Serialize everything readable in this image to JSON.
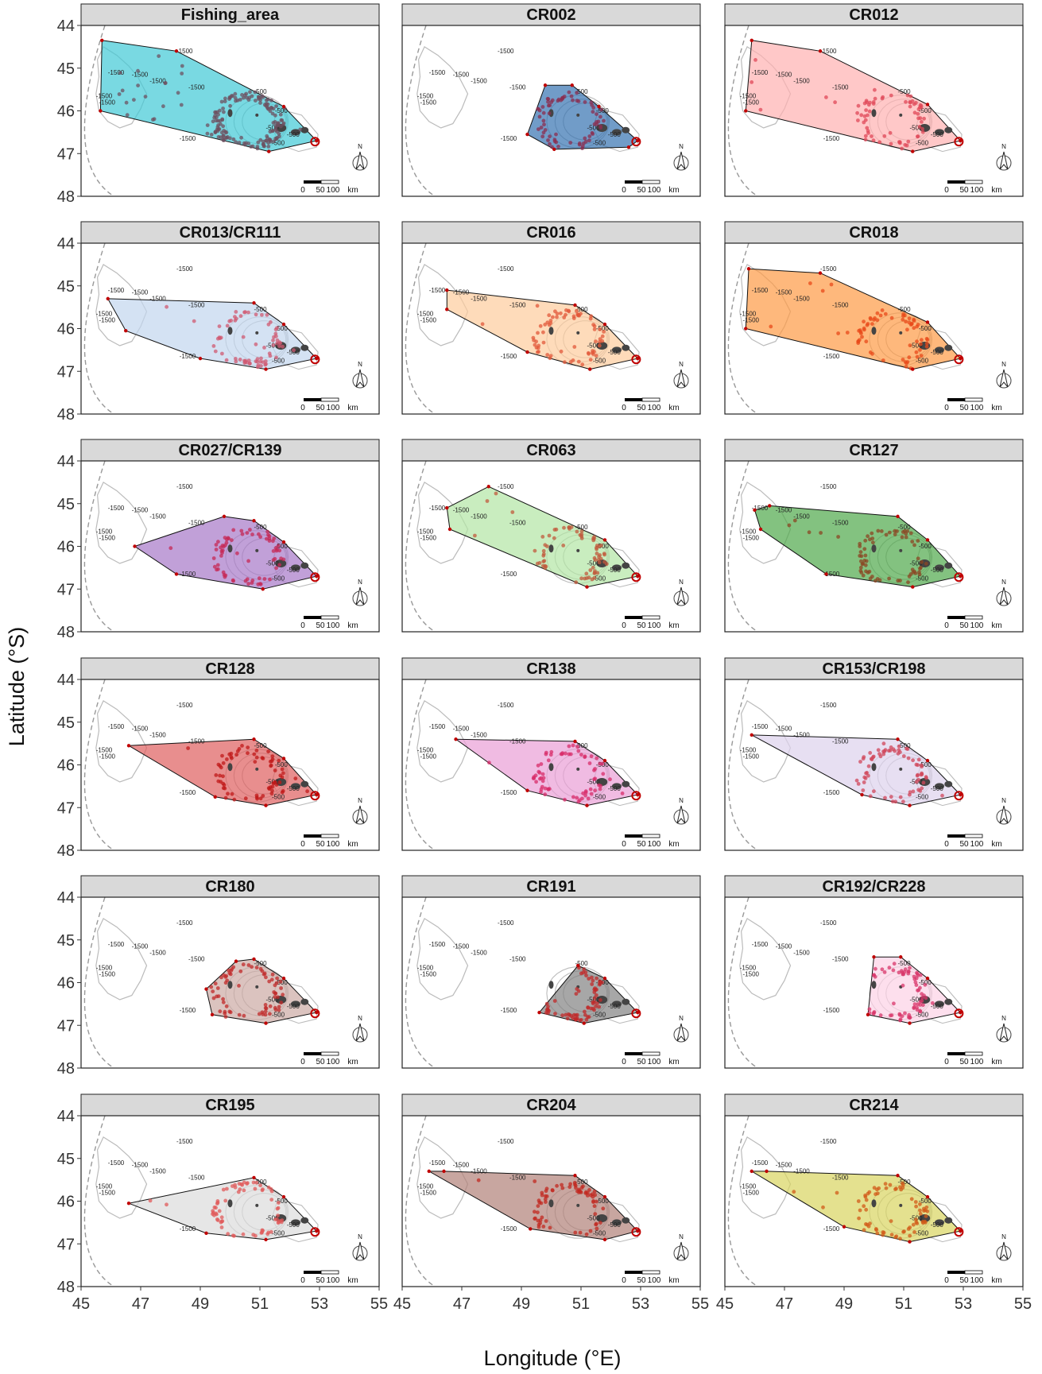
{
  "chart_data": {
    "type": "scatter",
    "xlabel": "Longitude (°E)",
    "ylabel": "Latitude (°S)",
    "x_ticks": [
      "45",
      "47",
      "49",
      "51",
      "53",
      "55"
    ],
    "y_ticks": [
      "44",
      "45",
      "46",
      "47",
      "48"
    ],
    "xlim": [
      45,
      55
    ],
    "ylim": [
      44,
      48
    ],
    "y_reversed": true,
    "contour_label": "-1500",
    "contour_label_inner": "-500",
    "scale_bar": {
      "labels": [
        "0",
        "50",
        "100",
        "km"
      ]
    },
    "north_arrow": "N",
    "facets": [
      {
        "name": "Fishing_area",
        "fill": "#40c9d6",
        "point": "#6e5060",
        "hull": [
          [
            45.7,
            44.35
          ],
          [
            48.2,
            44.6
          ],
          [
            51.8,
            45.9
          ],
          [
            52.9,
            46.7
          ],
          [
            51.3,
            46.95
          ],
          [
            45.65,
            46.0
          ]
        ]
      },
      {
        "name": "CR002",
        "fill": "#3572b0",
        "point": "#8b2d50",
        "hull": [
          [
            49.8,
            45.4
          ],
          [
            50.7,
            45.4
          ],
          [
            51.6,
            45.9
          ],
          [
            52.9,
            46.7
          ],
          [
            52.6,
            46.85
          ],
          [
            50.1,
            46.9
          ],
          [
            49.2,
            46.55
          ]
        ]
      },
      {
        "name": "CR012",
        "fill": "#ffb0b0",
        "point": "#e04858",
        "hull": [
          [
            45.9,
            44.35
          ],
          [
            48.2,
            44.6
          ],
          [
            51.8,
            45.85
          ],
          [
            52.9,
            46.7
          ],
          [
            51.3,
            46.95
          ],
          [
            45.7,
            46.0
          ]
        ]
      },
      {
        "name": "CR013/CR111",
        "fill": "#c2d6ee",
        "point": "#d05a72",
        "hull": [
          [
            45.9,
            45.3
          ],
          [
            50.8,
            45.4
          ],
          [
            51.8,
            45.9
          ],
          [
            52.9,
            46.7
          ],
          [
            51.2,
            46.95
          ],
          [
            49.0,
            46.7
          ],
          [
            46.5,
            46.05
          ]
        ]
      },
      {
        "name": "CR016",
        "fill": "#fdcc9c",
        "point": "#e2583a",
        "hull": [
          [
            46.5,
            45.1
          ],
          [
            50.8,
            45.45
          ],
          [
            51.8,
            45.9
          ],
          [
            52.9,
            46.7
          ],
          [
            51.3,
            46.95
          ],
          [
            49.2,
            46.55
          ],
          [
            46.5,
            45.55
          ]
        ]
      },
      {
        "name": "CR018",
        "fill": "#fd9a45",
        "point": "#e84a1a",
        "hull": [
          [
            45.8,
            44.6
          ],
          [
            48.2,
            44.7
          ],
          [
            51.8,
            45.85
          ],
          [
            52.9,
            46.7
          ],
          [
            51.3,
            46.95
          ],
          [
            45.7,
            46.0
          ]
        ]
      },
      {
        "name": "CR027/CR139",
        "fill": "#a678c8",
        "point": "#c62855",
        "hull": [
          [
            46.8,
            46.0
          ],
          [
            49.8,
            45.3
          ],
          [
            50.8,
            45.4
          ],
          [
            51.8,
            45.9
          ],
          [
            52.9,
            46.7
          ],
          [
            51.1,
            47.0
          ],
          [
            48.2,
            46.65
          ]
        ]
      },
      {
        "name": "CR063",
        "fill": "#b2e6a4",
        "point": "#c05a3c",
        "hull": [
          [
            46.5,
            45.1
          ],
          [
            47.9,
            44.6
          ],
          [
            51.8,
            45.85
          ],
          [
            52.9,
            46.7
          ],
          [
            51.2,
            46.95
          ],
          [
            46.6,
            45.6
          ]
        ]
      },
      {
        "name": "CR127",
        "fill": "#4ea84a",
        "point": "#8b4523",
        "hull": [
          [
            46.0,
            45.15
          ],
          [
            46.5,
            45.05
          ],
          [
            50.8,
            45.3
          ],
          [
            51.8,
            45.85
          ],
          [
            52.9,
            46.7
          ],
          [
            51.3,
            46.95
          ],
          [
            48.4,
            46.65
          ],
          [
            46.2,
            45.6
          ]
        ]
      },
      {
        "name": "CR128",
        "fill": "#de5e5e",
        "point": "#c01818",
        "hull": [
          [
            46.6,
            45.55
          ],
          [
            50.8,
            45.4
          ],
          [
            51.8,
            45.85
          ],
          [
            52.9,
            46.7
          ],
          [
            51.2,
            46.95
          ],
          [
            49.5,
            46.75
          ]
        ]
      },
      {
        "name": "CR138",
        "fill": "#ea9ed6",
        "point": "#d82c6a",
        "hull": [
          [
            46.8,
            45.4
          ],
          [
            50.8,
            45.45
          ],
          [
            51.8,
            45.9
          ],
          [
            52.9,
            46.7
          ],
          [
            51.2,
            46.95
          ],
          [
            49.2,
            46.6
          ]
        ]
      },
      {
        "name": "CR153/CR198",
        "fill": "#ddd2ec",
        "point": "#d0465a",
        "hull": [
          [
            45.9,
            45.3
          ],
          [
            50.8,
            45.4
          ],
          [
            51.8,
            45.9
          ],
          [
            52.9,
            46.7
          ],
          [
            51.2,
            46.95
          ],
          [
            49.6,
            46.7
          ]
        ]
      },
      {
        "name": "CR180",
        "fill": "#ccaaa4",
        "point": "#c02a2a",
        "hull": [
          [
            49.2,
            46.15
          ],
          [
            50.2,
            45.5
          ],
          [
            50.8,
            45.45
          ],
          [
            51.8,
            45.9
          ],
          [
            52.9,
            46.7
          ],
          [
            51.2,
            46.95
          ],
          [
            49.4,
            46.75
          ]
        ]
      },
      {
        "name": "CR191",
        "fill": "#828282",
        "point": "#c02a2a",
        "hull": [
          [
            50.9,
            45.6
          ],
          [
            51.8,
            45.9
          ],
          [
            52.9,
            46.7
          ],
          [
            51.1,
            46.95
          ],
          [
            49.6,
            46.7
          ]
        ]
      },
      {
        "name": "CR192/CR228",
        "fill": "#fcd2e6",
        "point": "#d8366a",
        "hull": [
          [
            50.0,
            45.4
          ],
          [
            50.9,
            45.4
          ],
          [
            51.8,
            45.9
          ],
          [
            52.9,
            46.7
          ],
          [
            51.2,
            46.95
          ],
          [
            49.8,
            46.75
          ]
        ]
      },
      {
        "name": "CR195",
        "fill": "#dcdcdc",
        "point": "#e05a5a",
        "hull": [
          [
            46.6,
            46.05
          ],
          [
            50.8,
            45.45
          ],
          [
            51.8,
            45.9
          ],
          [
            52.9,
            46.7
          ],
          [
            51.2,
            46.9
          ],
          [
            49.2,
            46.75
          ]
        ]
      },
      {
        "name": "CR204",
        "fill": "#b08078",
        "point": "#c22820",
        "hull": [
          [
            45.9,
            45.3
          ],
          [
            46.4,
            45.3
          ],
          [
            50.8,
            45.4
          ],
          [
            51.8,
            45.9
          ],
          [
            52.9,
            46.7
          ],
          [
            51.8,
            46.9
          ],
          [
            49.3,
            46.65
          ]
        ]
      },
      {
        "name": "CR214",
        "fill": "#d8d460",
        "point": "#d25a18",
        "hull": [
          [
            45.9,
            45.3
          ],
          [
            46.4,
            45.3
          ],
          [
            50.8,
            45.4
          ],
          [
            51.8,
            45.9
          ],
          [
            52.9,
            46.7
          ],
          [
            51.2,
            46.95
          ],
          [
            49.0,
            46.6
          ]
        ]
      }
    ]
  }
}
